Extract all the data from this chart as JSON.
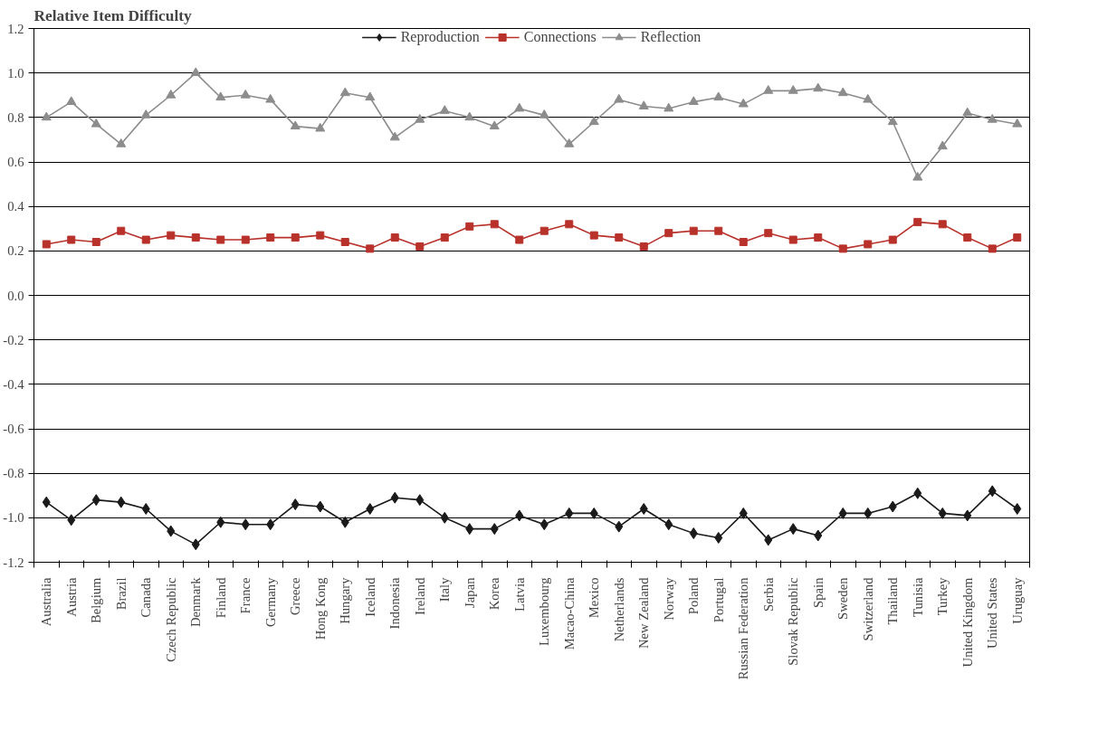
{
  "chart_data": {
    "type": "line",
    "title": "Relative Item Difficulty",
    "categories": [
      "Australia",
      "Austria",
      "Belgium",
      "Brazil",
      "Canada",
      "Czech Republic",
      "Denmark",
      "Finland",
      "France",
      "Germany",
      "Greece",
      "Hong Kong",
      "Hungary",
      "Iceland",
      "Indonesia",
      "Ireland",
      "Italy",
      "Japan",
      "Korea",
      "Latvia",
      "Luxembourg",
      "Macao-China",
      "Mexico",
      "Netherlands",
      "New Zealand",
      "Norway",
      "Poland",
      "Portugal",
      "Russian Federation",
      "Serbia",
      "Slovak Republic",
      "Spain",
      "Sweden",
      "Switzerland",
      "Thailand",
      "Tunisia",
      "Turkey",
      "United Kingdom",
      "United States",
      "Uruguay"
    ],
    "series": [
      {
        "name": "Reproduction",
        "color": "#1a1a1a",
        "marker": "diamond",
        "values": [
          -0.93,
          -1.01,
          -0.92,
          -0.93,
          -0.96,
          -1.06,
          -1.12,
          -1.02,
          -1.03,
          -1.03,
          -0.94,
          -0.95,
          -1.02,
          -0.96,
          -0.91,
          -0.92,
          -1.0,
          -1.05,
          -1.05,
          -0.99,
          -1.03,
          -0.98,
          -0.98,
          -1.04,
          -0.96,
          -1.03,
          -1.07,
          -1.09,
          -0.98,
          -1.1,
          -1.05,
          -1.08,
          -0.98,
          -0.98,
          -0.95,
          -0.89,
          -0.98,
          -0.99,
          -0.88,
          -0.96
        ]
      },
      {
        "name": "Connections",
        "color": "#b8312a",
        "marker": "square",
        "values": [
          0.23,
          0.25,
          0.24,
          0.29,
          0.25,
          0.27,
          0.26,
          0.25,
          0.25,
          0.26,
          0.26,
          0.27,
          0.24,
          0.21,
          0.26,
          0.22,
          0.26,
          0.31,
          0.32,
          0.25,
          0.29,
          0.32,
          0.27,
          0.26,
          0.22,
          0.28,
          0.29,
          0.29,
          0.24,
          0.28,
          0.25,
          0.26,
          0.21,
          0.23,
          0.25,
          0.33,
          0.32,
          0.26,
          0.21,
          0.26
        ]
      },
      {
        "name": "Reflection",
        "color": "#8c8c8c",
        "marker": "triangle",
        "values": [
          0.8,
          0.87,
          0.77,
          0.68,
          0.81,
          0.9,
          1.0,
          0.89,
          0.9,
          0.88,
          0.76,
          0.75,
          0.91,
          0.89,
          0.71,
          0.79,
          0.83,
          0.8,
          0.76,
          0.84,
          0.81,
          0.68,
          0.78,
          0.88,
          0.85,
          0.84,
          0.87,
          0.89,
          0.86,
          0.92,
          0.92,
          0.93,
          0.91,
          0.88,
          0.78,
          0.53,
          0.67,
          0.82,
          0.79,
          0.77
        ]
      }
    ],
    "ylim": [
      -1.2,
      1.2
    ],
    "yticks": [
      {
        "value": -1.2,
        "label": "-1.2"
      },
      {
        "value": -1.0,
        "label": "-1.0"
      },
      {
        "value": -0.8,
        "label": "-0.8"
      },
      {
        "value": -0.6,
        "label": "-0.6"
      },
      {
        "value": -0.4,
        "label": "-0.4"
      },
      {
        "value": -0.2,
        "label": "-0.2"
      },
      {
        "value": 0,
        "label": "0.0"
      },
      {
        "value": 0.2,
        "label": "0.2"
      },
      {
        "value": 0.4,
        "label": "0.4"
      },
      {
        "value": 0.6,
        "label": "0.6"
      },
      {
        "value": 0.8,
        "label": "0.8"
      },
      {
        "value": 1.0,
        "label": "1.0"
      },
      {
        "value": 1.2,
        "label": "1.2"
      }
    ],
    "grid": "y",
    "legend": "top",
    "line_style": "solid"
  }
}
